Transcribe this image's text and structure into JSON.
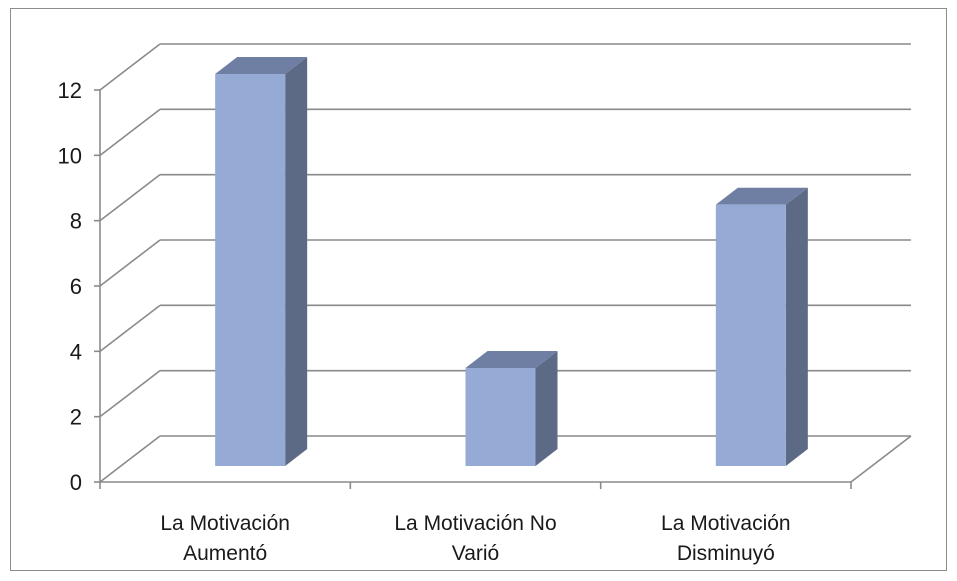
{
  "chart_data": {
    "type": "bar",
    "style": "3d-clustered-column",
    "categories": [
      [
        "La Motivación",
        "Aumentó"
      ],
      [
        "La Motivación No",
        "Varió"
      ],
      [
        "La Motivación",
        "Disminuyó"
      ]
    ],
    "values": [
      12,
      3,
      8
    ],
    "ylim": [
      0,
      12
    ],
    "yticks": [
      0,
      2,
      4,
      6,
      8,
      10,
      12
    ],
    "grid": true,
    "legend": "none",
    "colors": {
      "bar_front": "#95abd6",
      "bar_side": "#5c6a86",
      "bar_top": "#6f7fa4",
      "grid": "#8a8a8a",
      "axis": "#8a8a8a"
    }
  }
}
